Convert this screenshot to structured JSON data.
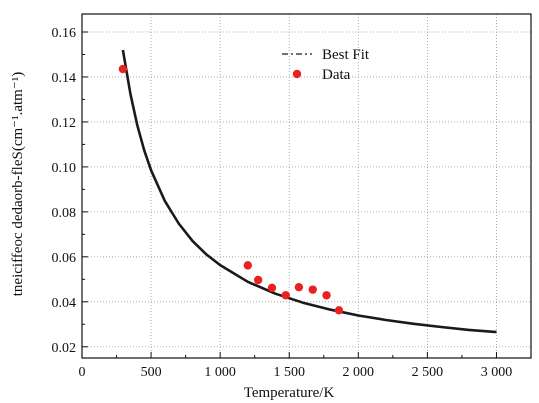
{
  "chart_data": {
    "type": "scatter",
    "title": "",
    "xlabel": "Temperature/K",
    "ylabel": "tneiciffeoc dedaorb-fleS(cm⁻¹.atm⁻¹)",
    "xlim": [
      0,
      3250
    ],
    "ylim": [
      0.015,
      0.168
    ],
    "grid": true,
    "legend_position": "top-center",
    "x_ticks": [
      {
        "value": 0,
        "label": "0"
      },
      {
        "value": 500,
        "label": "500"
      },
      {
        "value": 1000,
        "label": "1 000"
      },
      {
        "value": 1500,
        "label": "1 500"
      },
      {
        "value": 2000,
        "label": "2 000"
      },
      {
        "value": 2500,
        "label": "2 500"
      },
      {
        "value": 3000,
        "label": "3 000"
      }
    ],
    "y_ticks": [
      {
        "value": 0.02,
        "label": "0.02"
      },
      {
        "value": 0.04,
        "label": "0.04"
      },
      {
        "value": 0.06,
        "label": "0.06"
      },
      {
        "value": 0.08,
        "label": "0.08"
      },
      {
        "value": 0.1,
        "label": "0.10"
      },
      {
        "value": 0.12,
        "label": "0.12"
      },
      {
        "value": 0.14,
        "label": "0.14"
      },
      {
        "value": 0.16,
        "label": "0.16"
      }
    ],
    "series": [
      {
        "name": "Best Fit",
        "kind": "line",
        "color": "#1a1a1a",
        "x": [
          296,
          350,
          400,
          450,
          500,
          600,
          700,
          800,
          900,
          1000,
          1200,
          1400,
          1600,
          1800,
          2000,
          2200,
          2400,
          2600,
          2800,
          3000
        ],
        "y": [
          0.152,
          0.1325,
          0.1185,
          0.1074,
          0.0985,
          0.0848,
          0.0748,
          0.0671,
          0.0611,
          0.0563,
          0.0489,
          0.0436,
          0.0396,
          0.0365,
          0.0339,
          0.0319,
          0.0302,
          0.0288,
          0.0275,
          0.0265
        ]
      },
      {
        "name": "Data",
        "kind": "points",
        "color": "#e8231f",
        "x": [
          296,
          1200,
          1275,
          1375,
          1475,
          1570,
          1670,
          1770,
          1860
        ],
        "y": [
          0.1435,
          0.0562,
          0.0497,
          0.0462,
          0.0429,
          0.0465,
          0.0454,
          0.0429,
          0.0362
        ]
      }
    ]
  }
}
